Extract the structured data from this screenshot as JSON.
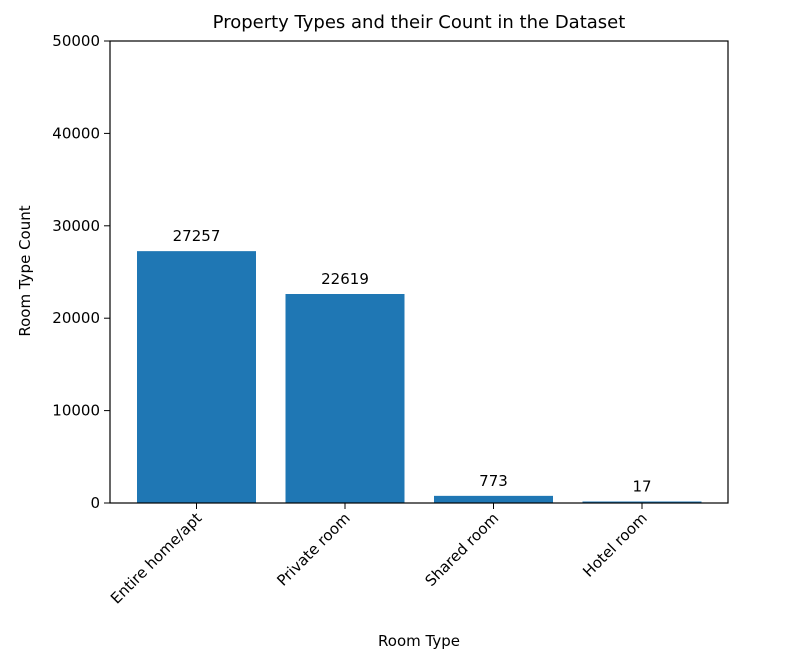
{
  "chart_data": {
    "type": "bar",
    "title": "Property Types and their Count in the Dataset",
    "xlabel": "Room Type",
    "ylabel": "Room Type Count",
    "categories": [
      "Entire home/apt",
      "Private room",
      "Shared room",
      "Hotel room"
    ],
    "values": [
      27257,
      22619,
      773,
      17
    ],
    "data_labels": [
      "27257",
      "22619",
      "773",
      "17"
    ],
    "ylim": [
      0,
      50000
    ],
    "yticks": [
      0,
      10000,
      20000,
      30000,
      40000,
      50000
    ],
    "ytick_labels": [
      "0",
      "10000",
      "20000",
      "30000",
      "40000",
      "50000"
    ],
    "bar_color": "#1f77b4",
    "grid": false,
    "legend": "none"
  }
}
